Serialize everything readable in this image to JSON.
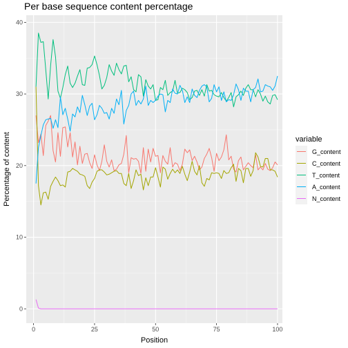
{
  "chart_data": {
    "type": "line",
    "title": "Per base sequence content percentage",
    "xlabel": "Position",
    "ylabel": "Percentage of content",
    "xlim": [
      -3,
      102
    ],
    "ylim": [
      -2,
      41
    ],
    "xticks": [
      0,
      25,
      50,
      75,
      100
    ],
    "yticks": [
      0,
      10,
      20,
      30,
      40
    ],
    "grid": true,
    "legend": {
      "title": "variable",
      "position": "right"
    },
    "x": [
      1,
      2,
      3,
      4,
      5,
      6,
      7,
      8,
      9,
      10,
      11,
      12,
      13,
      14,
      15,
      16,
      17,
      18,
      19,
      20,
      21,
      22,
      23,
      24,
      25,
      26,
      27,
      28,
      29,
      30,
      31,
      32,
      33,
      34,
      35,
      36,
      37,
      38,
      39,
      40,
      41,
      42,
      43,
      44,
      45,
      46,
      47,
      48,
      49,
      50,
      51,
      52,
      53,
      54,
      55,
      56,
      57,
      58,
      59,
      60,
      61,
      62,
      63,
      64,
      65,
      66,
      67,
      68,
      69,
      70,
      71,
      72,
      73,
      74,
      75,
      76,
      77,
      78,
      79,
      80,
      81,
      82,
      83,
      84,
      85,
      86,
      87,
      88,
      89,
      90,
      91,
      92,
      93,
      94,
      95,
      96,
      97,
      98,
      99,
      100
    ],
    "series": [
      {
        "name": "G_content",
        "color": "#F8766D",
        "values": [
          27.0,
          23.2,
          24.4,
          21.4,
          25.6,
          26.2,
          27.0,
          22.1,
          20.5,
          24.6,
          21.3,
          25.3,
          25.4,
          22.6,
          24.6,
          21.2,
          23.3,
          20.1,
          22.7,
          20.3,
          21.6,
          21.7,
          20.4,
          19.6,
          21.5,
          20.1,
          19.3,
          20.6,
          22.9,
          20.6,
          19.8,
          20.8,
          19.3,
          19.5,
          20.1,
          20.3,
          21.6,
          24.2,
          19.0,
          21.1,
          20.9,
          21.0,
          20.6,
          18.9,
          22.5,
          19.2,
          22.3,
          20.5,
          22.4,
          21.3,
          21.4,
          19.0,
          21.4,
          20.6,
          20.2,
          22.5,
          19.8,
          20.4,
          20.2,
          19.3,
          20.2,
          22.3,
          21.8,
          22.2,
          20.7,
          21.3,
          20.5,
          19.4,
          19.8,
          21.0,
          21.6,
          22.4,
          21.1,
          19.2,
          21.7,
          20.7,
          21.2,
          22.2,
          24.3,
          20.8,
          21.3,
          19.5,
          19.1,
          20.7,
          21.2,
          19.4,
          19.9,
          20.4,
          20.0,
          19.7,
          21.5,
          19.4,
          19.8,
          19.4,
          20.3,
          19.5,
          19.3,
          19.7,
          20.5,
          20.1
        ]
      },
      {
        "name": "C_content",
        "color": "#7CAE00",
        "values": [
          31.0,
          17.2,
          14.5,
          16.2,
          16.3,
          15.3,
          17.1,
          17.8,
          18.4,
          17.9,
          17.2,
          17.3,
          17.0,
          19.1,
          19.2,
          19.6,
          19.4,
          19.2,
          18.8,
          18.7,
          18.5,
          17.2,
          16.8,
          17.7,
          18.2,
          19.2,
          19.4,
          19.4,
          19.1,
          18.7,
          18.8,
          19.0,
          19.2,
          19.3,
          18.9,
          18.9,
          17.5,
          17.2,
          18.9,
          16.8,
          17.9,
          19.4,
          18.6,
          18.8,
          16.6,
          18.3,
          17.2,
          18.4,
          18.4,
          19.7,
          18.4,
          17.0,
          19.8,
          19.5,
          18.1,
          18.9,
          19.5,
          19.0,
          19.4,
          18.9,
          19.9,
          18.8,
          17.9,
          19.1,
          20.6,
          19.2,
          18.7,
          20.0,
          17.6,
          17.1,
          18.2,
          18.0,
          19.0,
          18.9,
          19.0,
          18.9,
          18.2,
          19.3,
          18.9,
          19.0,
          19.7,
          20.2,
          17.8,
          19.6,
          19.3,
          17.6,
          19.6,
          19.6,
          18.5,
          19.3,
          21.8,
          21.2,
          19.9,
          19.8,
          21.0,
          21.0,
          19.4,
          19.4,
          19.2,
          18.4
        ]
      },
      {
        "name": "T_content",
        "color": "#00BFC4",
        "line_color": "#00BA38",
        "values": [
          31.0,
          38.5,
          37.2,
          37.3,
          33.4,
          29.3,
          34.0,
          37.6,
          35.2,
          30.4,
          29.4,
          30.9,
          32.7,
          33.9,
          31.5,
          30.9,
          31.5,
          32.5,
          33.4,
          31.3,
          31.2,
          33.6,
          33.7,
          34.1,
          35.3,
          34.1,
          32.6,
          30.7,
          31.2,
          32.3,
          34.1,
          33.2,
          32.6,
          34.3,
          33.4,
          32.8,
          33.9,
          34.0,
          31.7,
          32.4,
          30.6,
          30.3,
          32.7,
          32.4,
          29.7,
          32.0,
          31.1,
          30.7,
          31.3,
          29.1,
          29.2,
          30.9,
          30.6,
          31.9,
          29.8,
          30.2,
          30.4,
          31.9,
          30.1,
          30.2,
          30.8,
          30.6,
          30.2,
          29.2,
          29.5,
          30.4,
          30.5,
          29.8,
          30.6,
          29.7,
          31.3,
          30.4,
          30.5,
          29.9,
          29.7,
          29.6,
          30.2,
          29.5,
          29.0,
          29.5,
          30.2,
          28.2,
          29.6,
          29.9,
          30.4,
          29.8,
          30.8,
          31.3,
          30.6,
          30.6,
          29.6,
          30.6,
          30.0,
          29.0,
          29.7,
          28.9,
          28.6,
          29.8,
          29.9,
          29.2
        ]
      },
      {
        "name": "A_content",
        "color": "#00A9FF",
        "values": [
          17.5,
          22.5,
          24.2,
          25.7,
          26.4,
          26.5,
          26.6,
          25.2,
          26.4,
          25.3,
          29.6,
          27.1,
          28.0,
          26.5,
          24.8,
          27.2,
          26.8,
          28.2,
          27.4,
          29.8,
          28.5,
          27.0,
          28.3,
          28.7,
          26.4,
          27.1,
          28.4,
          28.0,
          27.3,
          27.4,
          26.5,
          28.0,
          27.3,
          29.3,
          28.5,
          30.5,
          25.8,
          27.7,
          28.4,
          30.0,
          30.4,
          28.4,
          29.1,
          28.6,
          29.3,
          31.1,
          28.4,
          29.1,
          28.8,
          29.1,
          29.7,
          30.0,
          29.9,
          27.5,
          29.1,
          28.8,
          30.7,
          30.1,
          30.0,
          31.2,
          30.5,
          28.8,
          29.6,
          28.8,
          30.7,
          29.8,
          29.5,
          30.5,
          31.1,
          31.3,
          31.0,
          28.9,
          29.4,
          31.3,
          30.3,
          31.0,
          29.1,
          30.3,
          28.9,
          29.2,
          29.1,
          29.9,
          31.4,
          30.6,
          29.1,
          30.8,
          30.4,
          30.4,
          28.9,
          30.6,
          30.9,
          32.1,
          30.3,
          30.4,
          31.3,
          31.1,
          31.0,
          30.5,
          31.1,
          32.5
        ]
      },
      {
        "name": "N_content",
        "color": "#FF61C3",
        "line_color": "#E76BF3",
        "values": [
          1.3,
          0.1,
          0.0,
          0.0,
          0.0,
          0.0,
          0.0,
          0.0,
          0.0,
          0.0,
          0.0,
          0.0,
          0.0,
          0.0,
          0.0,
          0.0,
          0.0,
          0.0,
          0.0,
          0.0,
          0.0,
          0.0,
          0.0,
          0.0,
          0.0,
          0.0,
          0.0,
          0.0,
          0.0,
          0.0,
          0.0,
          0.0,
          0.0,
          0.0,
          0.0,
          0.0,
          0.0,
          0.0,
          0.0,
          0.0,
          0.0,
          0.0,
          0.0,
          0.0,
          0.0,
          0.0,
          0.0,
          0.0,
          0.0,
          0.0,
          0.0,
          0.0,
          0.0,
          0.0,
          0.0,
          0.0,
          0.0,
          0.0,
          0.0,
          0.0,
          0.0,
          0.0,
          0.0,
          0.0,
          0.0,
          0.0,
          0.0,
          0.0,
          0.0,
          0.0,
          0.0,
          0.0,
          0.0,
          0.0,
          0.0,
          0.0,
          0.0,
          0.0,
          0.0,
          0.0,
          0.0,
          0.0,
          0.0,
          0.0,
          0.0,
          0.0,
          0.0,
          0.0,
          0.0,
          0.0,
          0.0,
          0.0,
          0.0,
          0.0,
          0.0,
          0.0,
          0.0,
          0.0,
          0.0,
          0.0
        ]
      }
    ]
  }
}
